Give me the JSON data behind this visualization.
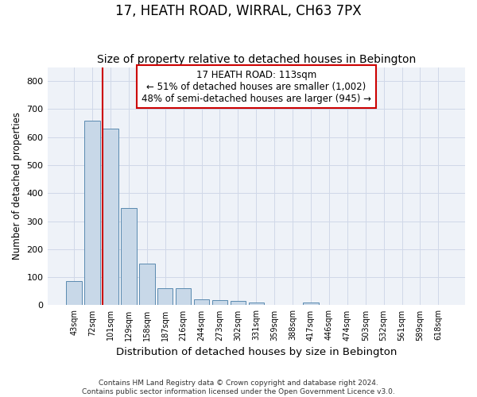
{
  "title": "17, HEATH ROAD, WIRRAL, CH63 7PX",
  "subtitle": "Size of property relative to detached houses in Bebington",
  "xlabel": "Distribution of detached houses by size in Bebington",
  "ylabel": "Number of detached properties",
  "categories": [
    "43sqm",
    "72sqm",
    "101sqm",
    "129sqm",
    "158sqm",
    "187sqm",
    "216sqm",
    "244sqm",
    "273sqm",
    "302sqm",
    "331sqm",
    "359sqm",
    "388sqm",
    "417sqm",
    "446sqm",
    "474sqm",
    "503sqm",
    "532sqm",
    "561sqm",
    "589sqm",
    "618sqm"
  ],
  "values": [
    85,
    660,
    630,
    348,
    148,
    62,
    62,
    22,
    18,
    14,
    10,
    0,
    0,
    10,
    0,
    0,
    0,
    0,
    0,
    0,
    0
  ],
  "bar_color": "#c8d8e8",
  "bar_edge_color": "#5a8ab0",
  "grid_color": "#d0d8e8",
  "background_color": "#eef2f8",
  "annotation_text": "17 HEATH ROAD: 113sqm\n← 51% of detached houses are smaller (1,002)\n48% of semi-detached houses are larger (945) →",
  "annotation_box_color": "#cc0000",
  "vline_color": "#cc0000",
  "ylim": [
    0,
    850
  ],
  "yticks": [
    0,
    100,
    200,
    300,
    400,
    500,
    600,
    700,
    800
  ],
  "footer": "Contains HM Land Registry data © Crown copyright and database right 2024.\nContains public sector information licensed under the Open Government Licence v3.0.",
  "title_fontsize": 12,
  "subtitle_fontsize": 10,
  "xlabel_fontsize": 9.5,
  "ylabel_fontsize": 8.5,
  "annotation_fontsize": 8.5
}
